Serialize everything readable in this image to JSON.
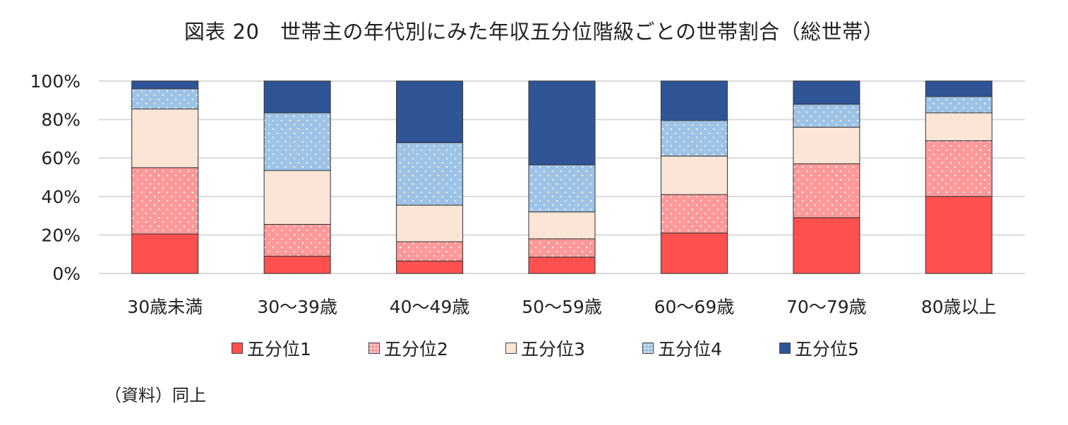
{
  "chart_data": {
    "type": "bar",
    "stacked": true,
    "title": "図表 20　世帯主の年代別にみた年収五分位階級ごとの世帯割合（総世帯）",
    "categories": [
      "30歳未満",
      "30～39歳",
      "40～49歳",
      "50～59歳",
      "60～69歳",
      "70～79歳",
      "80歳以上"
    ],
    "y_ticks": [
      "0%",
      "20%",
      "40%",
      "60%",
      "80%",
      "100%"
    ],
    "ylim": [
      0,
      100
    ],
    "grid": true,
    "legend_position": "bottom",
    "series": [
      {
        "name": "五分位1",
        "color": "#ff5050",
        "pattern": "solid",
        "values": [
          20.5,
          9,
          6.5,
          8.5,
          21,
          29,
          40
        ]
      },
      {
        "name": "五分位2",
        "color": "#ff9999",
        "pattern": "dots",
        "values": [
          34.5,
          16.5,
          10,
          9.5,
          20,
          28,
          29
        ]
      },
      {
        "name": "五分位3",
        "color": "#fbe5d6",
        "pattern": "solid",
        "values": [
          30.5,
          28,
          19,
          14,
          20,
          19,
          14.5
        ]
      },
      {
        "name": "五分位4",
        "color": "#9dc3e6",
        "pattern": "dots",
        "values": [
          10.5,
          30,
          32.5,
          24.5,
          18.5,
          12,
          8.5
        ]
      },
      {
        "name": "五分位5",
        "color": "#2f5597",
        "pattern": "solid",
        "values": [
          4,
          16.5,
          32,
          43.5,
          20.5,
          12,
          8
        ]
      }
    ]
  },
  "source_note": "（資料）同上"
}
